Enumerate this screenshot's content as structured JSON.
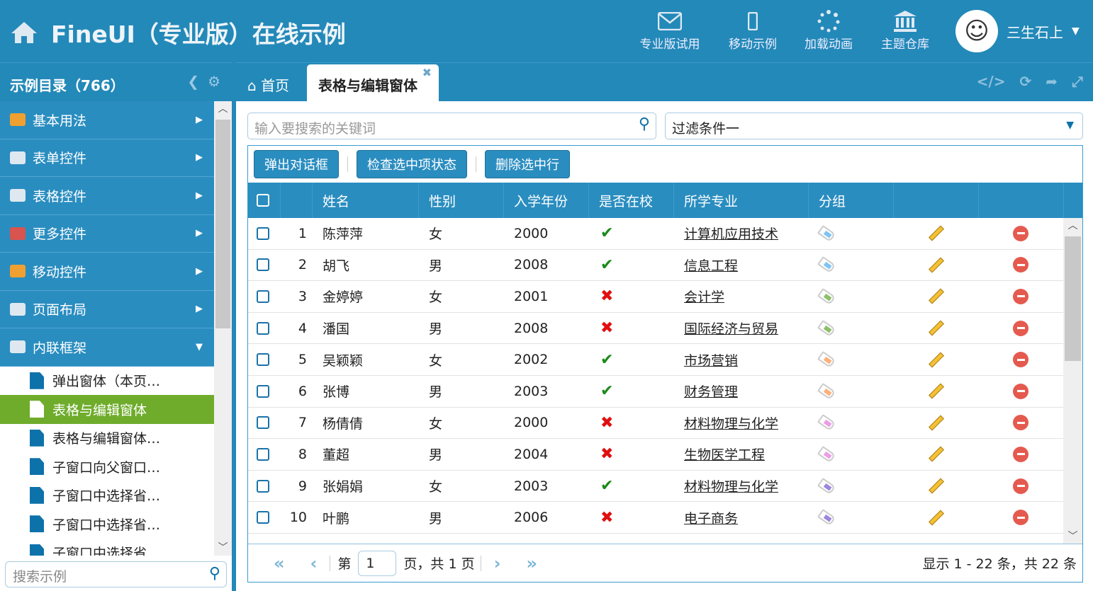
{
  "header": {
    "title": "FineUI（专业版）在线示例",
    "nav": [
      {
        "label": "专业版试用",
        "icon": "envelope-icon"
      },
      {
        "label": "移动示例",
        "icon": "mobile-icon"
      },
      {
        "label": "加载动画",
        "icon": "spinner-icon"
      },
      {
        "label": "主题仓库",
        "icon": "bank-icon"
      }
    ],
    "user": "三生石上"
  },
  "sidebar": {
    "title": "示例目录（766）",
    "items": [
      {
        "label": "基本用法",
        "color": "#f0a030"
      },
      {
        "label": "表单控件",
        "color": "#dfe8f0"
      },
      {
        "label": "表格控件",
        "color": "#dfe8f0"
      },
      {
        "label": "更多控件",
        "color": "#d9534f"
      },
      {
        "label": "移动控件",
        "color": "#f0a030"
      },
      {
        "label": "页面布局",
        "color": "#dfe8f0"
      },
      {
        "label": "内联框架",
        "color": "#dfe8f0"
      }
    ],
    "subitems": [
      "弹出窗体（本页…",
      "表格与编辑窗体",
      "表格与编辑窗体…",
      "子窗口向父窗口…",
      "子窗口中选择省…",
      "子窗口中选择省…",
      "子窗口中选择省…"
    ],
    "search_placeholder": "搜索示例"
  },
  "tabs": {
    "home": "首页",
    "active": "表格与编辑窗体"
  },
  "main": {
    "search_placeholder": "输入要搜索的关键词",
    "filter": "过滤条件一",
    "toolbar": [
      "弹出对话框",
      "检查选中项状态",
      "删除选中行"
    ],
    "columns": [
      "姓名",
      "性别",
      "入学年份",
      "是否在校",
      "所学专业",
      "分组"
    ],
    "rows": [
      {
        "n": "1",
        "name": "陈萍萍",
        "gender": "女",
        "year": "2000",
        "in": true,
        "major": "计算机应用技术",
        "tag": "#7fc4f4"
      },
      {
        "n": "2",
        "name": "胡飞",
        "gender": "男",
        "year": "2008",
        "in": true,
        "major": "信息工程",
        "tag": "#7fc4f4"
      },
      {
        "n": "3",
        "name": "金婷婷",
        "gender": "女",
        "year": "2001",
        "in": false,
        "major": "会计学",
        "tag": "#8cbf6a"
      },
      {
        "n": "4",
        "name": "潘国",
        "gender": "男",
        "year": "2008",
        "in": false,
        "major": "国际经济与贸易",
        "tag": "#8cbf6a"
      },
      {
        "n": "5",
        "name": "吴颖颖",
        "gender": "女",
        "year": "2002",
        "in": true,
        "major": "市场营销",
        "tag": "#ffb07a"
      },
      {
        "n": "6",
        "name": "张博",
        "gender": "男",
        "year": "2003",
        "in": true,
        "major": "财务管理",
        "tag": "#ffb07a"
      },
      {
        "n": "7",
        "name": "杨倩倩",
        "gender": "女",
        "year": "2000",
        "in": false,
        "major": "材料物理与化学",
        "tag": "#ee9ce8"
      },
      {
        "n": "8",
        "name": "董超",
        "gender": "男",
        "year": "2004",
        "in": false,
        "major": "生物医学工程",
        "tag": "#ee9ce8"
      },
      {
        "n": "9",
        "name": "张娟娟",
        "gender": "女",
        "year": "2003",
        "in": true,
        "major": "材料物理与化学",
        "tag": "#9c86e0"
      },
      {
        "n": "10",
        "name": "叶鹏",
        "gender": "男",
        "year": "2006",
        "in": false,
        "major": "电子商务",
        "tag": "#9c86e0"
      }
    ],
    "pager": {
      "prefix": "第",
      "page": "1",
      "suffix": "页，共 1 页",
      "summary": "显示 1 - 22 条，共 22 条"
    }
  },
  "colors": {
    "header": "#2389b9",
    "selected": "#6fac2c"
  }
}
